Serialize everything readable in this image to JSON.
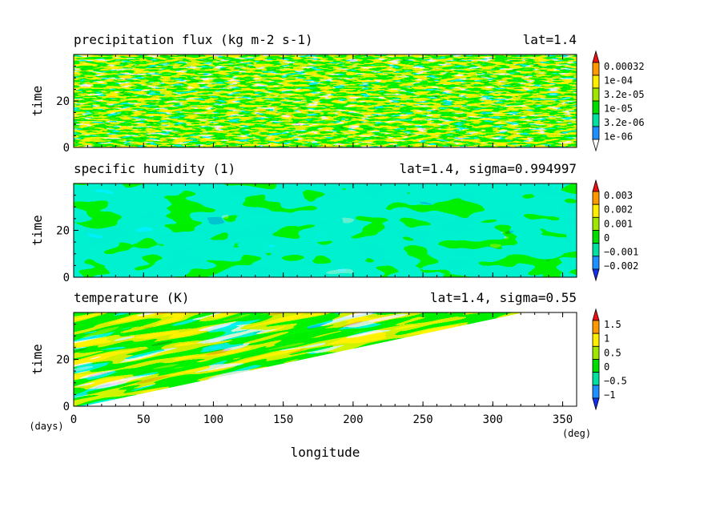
{
  "chart_data": [
    {
      "type": "heatmap",
      "title": "precipitation flux (kg m-2 s-1)",
      "annotation": "lat=1.4",
      "ylabel": "time",
      "yticks": [
        "0",
        "20"
      ],
      "ylim": [
        0,
        40
      ],
      "xlim": [
        0,
        360
      ],
      "colorbar": {
        "labels": [
          "0.00032",
          "1e-04",
          "3.2e-05",
          "1e-05",
          "3.2e-06",
          "1e-06"
        ],
        "colors": [
          "#ffffff",
          "#1e90ff",
          "#00e0a0",
          "#00dd00",
          "#a0e600",
          "#ffee00",
          "#ff9900",
          "#ee1010"
        ]
      }
    },
    {
      "type": "heatmap",
      "title": "specific humidity (1)",
      "annotation": "lat=1.4, sigma=0.994997",
      "ylabel": "time",
      "yticks": [
        "0",
        "20"
      ],
      "ylim": [
        0,
        40
      ],
      "xlim": [
        0,
        360
      ],
      "colorbar": {
        "labels": [
          "0.003",
          "0.002",
          "0.001",
          "0",
          "−0.001",
          "−0.002"
        ],
        "colors": [
          "#1030ee",
          "#1e90ff",
          "#00e0a0",
          "#00dd00",
          "#a0e600",
          "#ffee00",
          "#ff9900",
          "#ee1010"
        ]
      }
    },
    {
      "type": "heatmap",
      "title": "temperature (K)",
      "annotation": "lat=1.4, sigma=0.55",
      "ylabel": "time",
      "yticks": [
        "0",
        "20"
      ],
      "ylim": [
        0,
        40
      ],
      "xlim": [
        0,
        360
      ],
      "xlabel": "longitude",
      "xticks": [
        "0",
        "50",
        "100",
        "150",
        "200",
        "250",
        "300",
        "350"
      ],
      "xunit": "(deg)",
      "yunit": "(days)",
      "colorbar": {
        "labels": [
          "1.5",
          "1",
          "0.5",
          "0",
          "−0.5",
          "−1"
        ],
        "colors": [
          "#1030ee",
          "#1e90ff",
          "#00e0a0",
          "#00dd00",
          "#a0e600",
          "#ffee00",
          "#ff9900",
          "#ee1010"
        ]
      }
    }
  ]
}
